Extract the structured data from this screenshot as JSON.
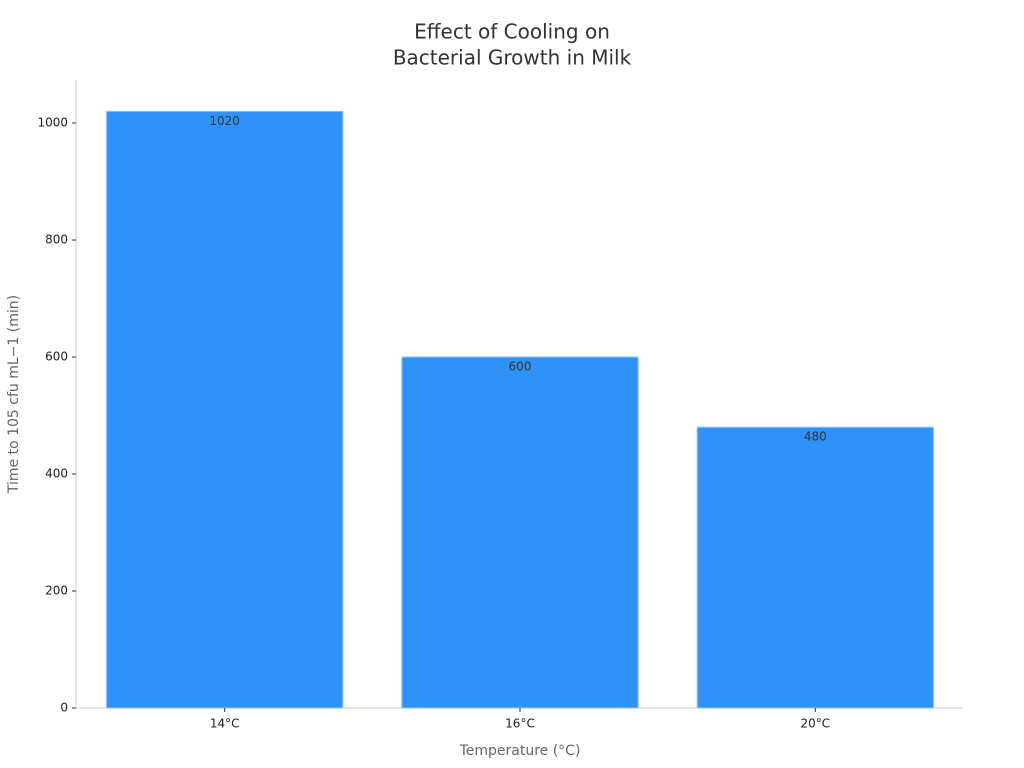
{
  "chart_data": {
    "type": "bar",
    "title": [
      "Effect of Cooling on",
      "Bacterial Growth in Milk"
    ],
    "x_label": "Temperature (°C)",
    "y_label": "Time to 105 cfu mL−1 (min)",
    "categories": [
      "14°C",
      "16°C",
      "20°C"
    ],
    "values": [
      1020,
      600,
      480
    ],
    "color": "#2f92f8",
    "ylim": [
      0,
      1071
    ],
    "yticks": [
      0,
      200,
      400,
      600,
      800,
      1000
    ],
    "grid": false
  }
}
